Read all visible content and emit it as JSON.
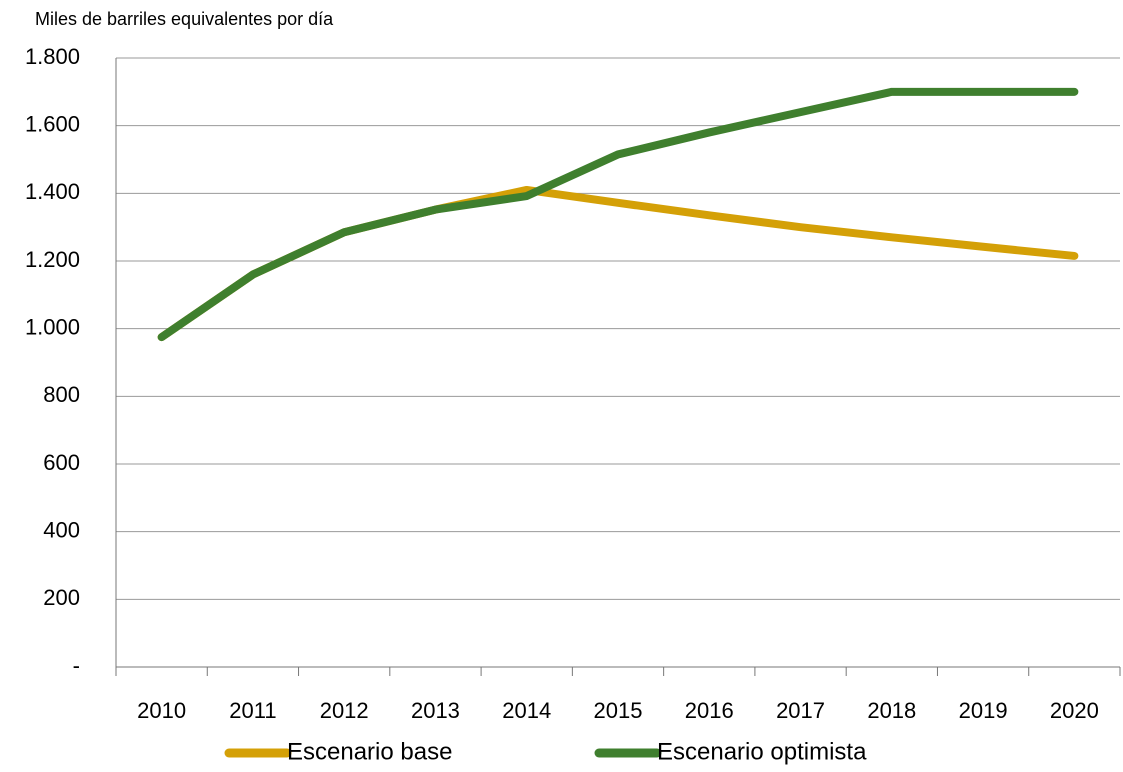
{
  "chart_data": {
    "type": "line",
    "title": "Miles de barriles equivalentes por día",
    "categories": [
      "2010",
      "2011",
      "2012",
      "2013",
      "2014",
      "2015",
      "2016",
      "2017",
      "2018",
      "2019",
      "2020"
    ],
    "series": [
      {
        "name": "Escenario base",
        "color": "#d4a007",
        "values": [
          975,
          1160,
          1285,
          1352,
          1410,
          1372,
          1335,
          1300,
          1270,
          1242,
          1215
        ]
      },
      {
        "name": "Escenario optimista",
        "color": "#3f7f2e",
        "values": [
          975,
          1160,
          1285,
          1352,
          1392,
          1515,
          1580,
          1640,
          1700,
          1700,
          1700
        ]
      }
    ],
    "ylim": [
      0,
      1800
    ],
    "yticks": [
      {
        "value": 0,
        "label": "-"
      },
      200,
      400,
      600,
      800,
      {
        "value": 1000,
        "label": "1.000"
      },
      {
        "value": 1200,
        "label": "1.200"
      },
      {
        "value": 1400,
        "label": "1.400"
      },
      {
        "value": 1600,
        "label": "1.600"
      },
      {
        "value": 1800,
        "label": "1.800"
      }
    ],
    "grid": true,
    "legend": "bottom"
  }
}
